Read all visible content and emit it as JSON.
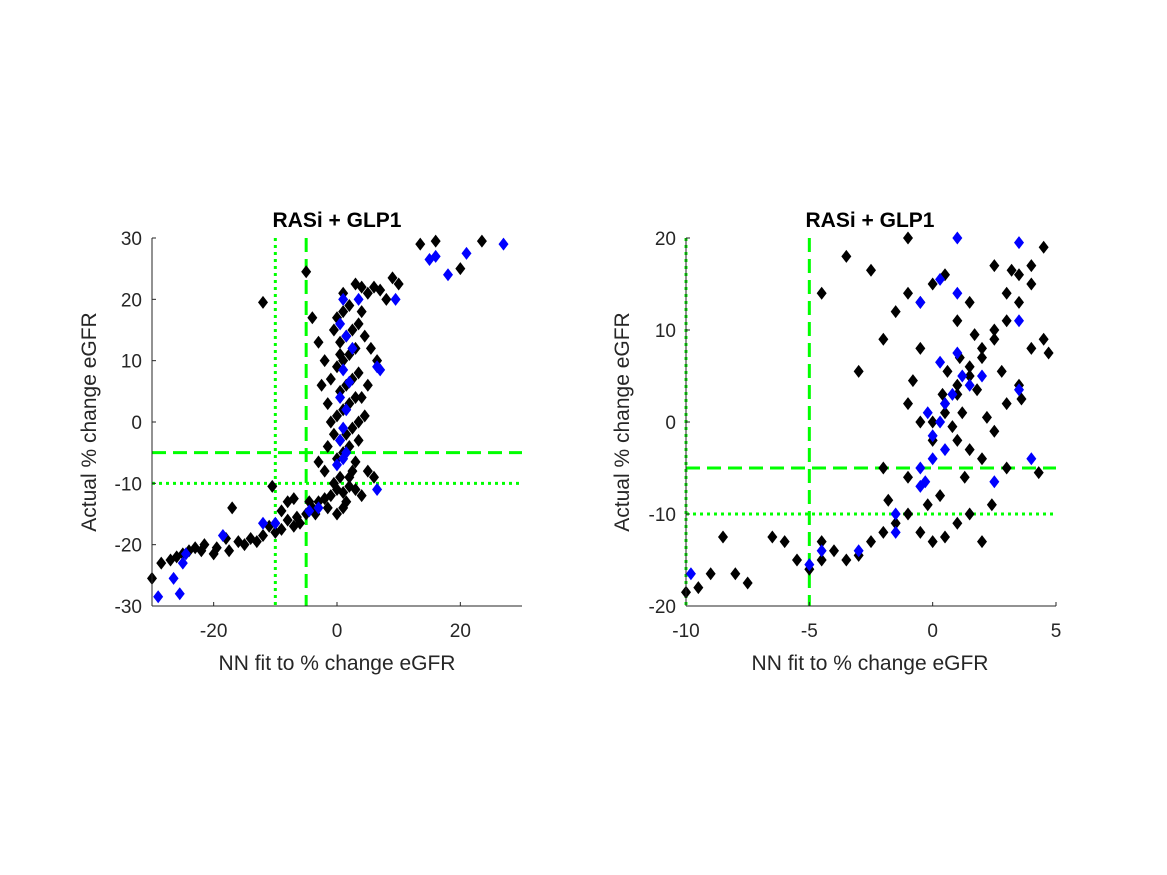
{
  "colors": {
    "series_black": "#000000",
    "series_blue": "#0000ff",
    "threshold": "#00ff00",
    "axis": "#262626"
  },
  "chart_data": [
    {
      "type": "scatter",
      "title": "RASi + GLP1",
      "xlabel": "NN fit to % change eGFR",
      "ylabel": "Actual % change eGFR",
      "xlim": [
        -30,
        30
      ],
      "ylim": [
        -30,
        30
      ],
      "xticks": [
        -20,
        0,
        20
      ],
      "yticks": [
        -30,
        -20,
        -10,
        0,
        10,
        20,
        30
      ],
      "marker": "diamond",
      "grid": false,
      "reference_lines": [
        {
          "axis": "x",
          "value": -10,
          "style": "dotted"
        },
        {
          "axis": "x",
          "value": -5,
          "style": "dashed"
        },
        {
          "axis": "y",
          "value": -5,
          "style": "dashed"
        },
        {
          "axis": "y",
          "value": -10,
          "style": "dotted"
        }
      ],
      "series": [
        {
          "color": "black",
          "points": [
            [
              -30,
              -25.5
            ],
            [
              -28.5,
              -23
            ],
            [
              -27,
              -22.5
            ],
            [
              -26,
              -22
            ],
            [
              -25,
              -21.5
            ],
            [
              -24,
              -21
            ],
            [
              -23,
              -20.5
            ],
            [
              -22,
              -21
            ],
            [
              -21.5,
              -20
            ],
            [
              -20,
              -21.5
            ],
            [
              -19.5,
              -20.5
            ],
            [
              -18,
              -19
            ],
            [
              -17.5,
              -21
            ],
            [
              -16,
              -19.5
            ],
            [
              -15,
              -20
            ],
            [
              -14,
              -19
            ],
            [
              -13,
              -19.5
            ],
            [
              -12,
              -18.5
            ],
            [
              -11,
              -17
            ],
            [
              -10,
              -18
            ],
            [
              -9,
              -17.5
            ],
            [
              -8,
              -16
            ],
            [
              -7,
              -17
            ],
            [
              -6,
              -16.5
            ],
            [
              -5,
              -15
            ],
            [
              -4,
              -14
            ],
            [
              -3,
              -13
            ],
            [
              -2,
              -12.5
            ],
            [
              -1,
              -12
            ],
            [
              0,
              -11
            ],
            [
              1,
              -11.5
            ],
            [
              2,
              -10.5
            ],
            [
              3,
              -11
            ],
            [
              4,
              -12
            ],
            [
              1.5,
              -13
            ],
            [
              -0.5,
              -10
            ],
            [
              0.5,
              -9
            ],
            [
              -12,
              19.5
            ],
            [
              -17,
              -14
            ],
            [
              -10.5,
              -10.5
            ],
            [
              -9,
              -14.5
            ],
            [
              -7,
              -12.5
            ],
            [
              -6.5,
              -15.5
            ],
            [
              -8,
              -13
            ],
            [
              0,
              -6
            ],
            [
              1,
              -5
            ],
            [
              2,
              -4
            ],
            [
              3,
              -6.5
            ],
            [
              0.5,
              -3
            ],
            [
              1.5,
              -2
            ],
            [
              2.5,
              -1
            ],
            [
              3.5,
              0
            ],
            [
              0,
              1
            ],
            [
              1,
              2
            ],
            [
              2,
              3
            ],
            [
              3,
              4
            ],
            [
              0.5,
              5
            ],
            [
              1.5,
              6
            ],
            [
              2.5,
              7
            ],
            [
              3.5,
              8
            ],
            [
              0,
              9
            ],
            [
              1,
              10
            ],
            [
              2,
              11
            ],
            [
              3,
              12
            ],
            [
              0.5,
              13
            ],
            [
              1.5,
              14
            ],
            [
              2.5,
              15
            ],
            [
              3.5,
              16
            ],
            [
              0,
              17
            ],
            [
              1,
              18
            ],
            [
              2,
              19
            ],
            [
              -5,
              24.5
            ],
            [
              -4,
              17
            ],
            [
              -3,
              13
            ],
            [
              -2,
              10
            ],
            [
              -2.5,
              6
            ],
            [
              -1.5,
              3
            ],
            [
              -1,
              0
            ],
            [
              -0.5,
              -2
            ],
            [
              -1.5,
              -4
            ],
            [
              4,
              18
            ],
            [
              5,
              21
            ],
            [
              6,
              22
            ],
            [
              7,
              21.5
            ],
            [
              8,
              20
            ],
            [
              9,
              23.5
            ],
            [
              10,
              22.5
            ],
            [
              4.5,
              14
            ],
            [
              5.5,
              12
            ],
            [
              6.5,
              10
            ],
            [
              5,
              6
            ],
            [
              4,
              4
            ],
            [
              4.5,
              1
            ],
            [
              3.5,
              -3
            ],
            [
              5,
              -8
            ],
            [
              6,
              -9
            ],
            [
              -2,
              -8
            ],
            [
              -3,
              -6.5
            ],
            [
              1,
              21
            ],
            [
              3,
              22.5
            ],
            [
              13.5,
              29
            ],
            [
              16,
              29.5
            ],
            [
              20,
              25
            ],
            [
              23.5,
              29.5
            ],
            [
              4,
              22
            ],
            [
              -0.5,
              15
            ],
            [
              0.5,
              11
            ],
            [
              -1,
              7
            ],
            [
              2.5,
              -8
            ],
            [
              1,
              -14
            ],
            [
              -1.5,
              -14
            ],
            [
              -3.5,
              -15
            ],
            [
              -4.5,
              -13
            ],
            [
              0,
              -15
            ],
            [
              2,
              -9
            ]
          ]
        },
        {
          "color": "blue",
          "points": [
            [
              -29,
              -28.5
            ],
            [
              -25.5,
              -28
            ],
            [
              -26.5,
              -25.5
            ],
            [
              -25,
              -23
            ],
            [
              -24.5,
              -21.5
            ],
            [
              -18.5,
              -18.5
            ],
            [
              -12,
              -16.5
            ],
            [
              -10,
              -16.5
            ],
            [
              -4.5,
              -14.5
            ],
            [
              -3,
              -14
            ],
            [
              0.5,
              -3
            ],
            [
              1,
              -1
            ],
            [
              1.5,
              2
            ],
            [
              0.5,
              4
            ],
            [
              2,
              6.5
            ],
            [
              1,
              8.5
            ],
            [
              2.5,
              12
            ],
            [
              1.5,
              14
            ],
            [
              0.5,
              16
            ],
            [
              1,
              20
            ],
            [
              3.5,
              20
            ],
            [
              6.5,
              9
            ],
            [
              7,
              8.5
            ],
            [
              9.5,
              20
            ],
            [
              6.5,
              -11
            ],
            [
              15,
              26.5
            ],
            [
              16,
              27
            ],
            [
              18,
              24
            ],
            [
              21,
              27.5
            ],
            [
              27,
              29
            ],
            [
              1.5,
              -5
            ],
            [
              0,
              -7
            ],
            [
              1,
              -6
            ]
          ]
        }
      ]
    },
    {
      "type": "scatter",
      "title": "RASi + GLP1",
      "xlabel": "NN fit to % change eGFR",
      "ylabel": "Actual % change eGFR",
      "xlim": [
        -10,
        5
      ],
      "ylim": [
        -20,
        20
      ],
      "xticks": [
        -10,
        -5,
        0,
        5
      ],
      "yticks": [
        -20,
        -10,
        0,
        10,
        20
      ],
      "marker": "diamond",
      "grid": false,
      "reference_lines": [
        {
          "axis": "x",
          "value": -10,
          "style": "dotted"
        },
        {
          "axis": "x",
          "value": -5,
          "style": "dashed"
        },
        {
          "axis": "y",
          "value": -5,
          "style": "dashed"
        },
        {
          "axis": "y",
          "value": -10,
          "style": "dotted"
        }
      ],
      "series": [
        {
          "color": "black",
          "points": [
            [
              -10,
              -18.5
            ],
            [
              -9.5,
              -18
            ],
            [
              -9,
              -16.5
            ],
            [
              -8.5,
              -12.5
            ],
            [
              -8,
              -16.5
            ],
            [
              -7.5,
              -17.5
            ],
            [
              -6.5,
              -12.5
            ],
            [
              -6,
              -13
            ],
            [
              -5.5,
              -15
            ],
            [
              -5,
              -16
            ],
            [
              -4.5,
              -15
            ],
            [
              -4.5,
              -13
            ],
            [
              -4,
              -14
            ],
            [
              -3.5,
              -15
            ],
            [
              -3,
              -14.5
            ],
            [
              -2.5,
              -13
            ],
            [
              -2,
              -12
            ],
            [
              -1.5,
              -11
            ],
            [
              -1,
              -10
            ],
            [
              -0.5,
              -12
            ],
            [
              0,
              -13
            ],
            [
              0.5,
              -12.5
            ],
            [
              1,
              -11
            ],
            [
              -3.5,
              18
            ],
            [
              -4.5,
              14
            ],
            [
              -3,
              5.5
            ],
            [
              -2.5,
              16.5
            ],
            [
              -2,
              9
            ],
            [
              -1.5,
              12
            ],
            [
              -1,
              14
            ],
            [
              -0.5,
              13
            ],
            [
              0,
              15
            ],
            [
              0.5,
              16
            ],
            [
              1,
              11
            ],
            [
              1.5,
              13
            ],
            [
              -0.5,
              8
            ],
            [
              -1,
              2
            ],
            [
              -0.5,
              0
            ],
            [
              0,
              -2
            ],
            [
              0.5,
              1
            ],
            [
              1,
              3
            ],
            [
              1.5,
              5
            ],
            [
              2,
              7
            ],
            [
              2.5,
              9
            ],
            [
              3,
              11
            ],
            [
              3.5,
              13
            ],
            [
              4,
              15
            ],
            [
              4.5,
              19
            ],
            [
              4,
              17
            ],
            [
              3.5,
              16
            ],
            [
              3,
              14
            ],
            [
              2.5,
              10
            ],
            [
              2,
              8
            ],
            [
              1.5,
              6
            ],
            [
              1,
              4
            ],
            [
              0.5,
              2
            ],
            [
              0,
              0
            ],
            [
              1,
              -2
            ],
            [
              1.5,
              -3
            ],
            [
              2,
              -4
            ],
            [
              2.5,
              -1
            ],
            [
              3,
              2
            ],
            [
              3.5,
              4
            ],
            [
              4,
              8
            ],
            [
              4.5,
              9
            ],
            [
              4.7,
              7.5
            ],
            [
              4.3,
              -5.5
            ],
            [
              3,
              -5
            ],
            [
              2,
              -13
            ],
            [
              1.5,
              -10
            ],
            [
              -1,
              -6
            ],
            [
              -2,
              -5
            ],
            [
              -1,
              20
            ],
            [
              2.5,
              17
            ],
            [
              3.2,
              16.5
            ],
            [
              1.2,
              1
            ],
            [
              1.8,
              3.5
            ],
            [
              0.8,
              -0.5
            ],
            [
              2.2,
              0.5
            ],
            [
              2.8,
              5.5
            ],
            [
              -0.2,
              -9
            ],
            [
              0.3,
              -8
            ],
            [
              -1.8,
              -8.5
            ],
            [
              1.1,
              7
            ],
            [
              1.7,
              9.5
            ],
            [
              0.6,
              5.5
            ],
            [
              -0.8,
              4.5
            ],
            [
              0.4,
              3
            ],
            [
              2.4,
              -9
            ],
            [
              3.6,
              2.5
            ],
            [
              1.3,
              -6
            ]
          ]
        },
        {
          "color": "blue",
          "points": [
            [
              -9.8,
              -16.5
            ],
            [
              -5,
              -15.5
            ],
            [
              -4.5,
              -14
            ],
            [
              -3,
              -14
            ],
            [
              -1.5,
              -10
            ],
            [
              -0.5,
              -7
            ],
            [
              -0.5,
              -5
            ],
            [
              -0.3,
              -6.5
            ],
            [
              0,
              -4
            ],
            [
              0.5,
              -3
            ],
            [
              0,
              -1.5
            ],
            [
              0.3,
              0
            ],
            [
              -0.2,
              1
            ],
            [
              0.5,
              2
            ],
            [
              0.8,
              3
            ],
            [
              1,
              7.5
            ],
            [
              1.2,
              5
            ],
            [
              0.3,
              6.5
            ],
            [
              1.5,
              4
            ],
            [
              2,
              5
            ],
            [
              0.3,
              15.5
            ],
            [
              1,
              20
            ],
            [
              3.5,
              19.5
            ],
            [
              3.5,
              11
            ],
            [
              1,
              14
            ],
            [
              -0.5,
              13
            ],
            [
              3.5,
              3.5
            ],
            [
              4,
              -4
            ],
            [
              2.5,
              -6.5
            ],
            [
              -1.5,
              -12
            ]
          ]
        }
      ]
    }
  ]
}
